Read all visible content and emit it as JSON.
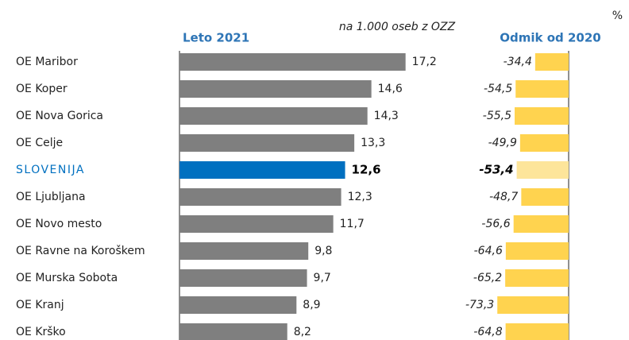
{
  "chart_data": [
    {
      "type": "hbar",
      "title": "Leto 2021",
      "subtitle": "na 1.000 oseb z OZZ",
      "categories": [
        "OE Maribor",
        "OE Koper",
        "OE Nova Gorica",
        "OE Celje",
        "SLOVENIJA",
        "OE Ljubljana",
        "OE Novo mesto",
        "OE Ravne na Koroškem",
        "OE Murska Sobota",
        "OE Kranj",
        "OE Krško"
      ],
      "values": [
        17.2,
        14.6,
        14.3,
        13.3,
        12.6,
        12.3,
        11.7,
        9.8,
        9.7,
        8.9,
        8.2
      ],
      "value_labels": [
        "17,2",
        "14,6",
        "14,3",
        "13,3",
        "12,6",
        "12,3",
        "11,7",
        "9,8",
        "9,7",
        "8,9",
        "8,2"
      ],
      "color": "#7f7f7f",
      "colors": [
        "#7f7f7f",
        "#7f7f7f",
        "#7f7f7f",
        "#7f7f7f",
        "#0070c0",
        "#7f7f7f",
        "#7f7f7f",
        "#7f7f7f",
        "#7f7f7f",
        "#7f7f7f",
        "#7f7f7f"
      ],
      "xlim": [
        0,
        20
      ]
    },
    {
      "type": "hbar",
      "title": "Odmik od 2020",
      "unit": "%",
      "values": [
        -34.4,
        -54.5,
        -55.5,
        -49.9,
        -53.4,
        -48.7,
        -56.6,
        -64.6,
        -65.2,
        -73.3,
        -64.8
      ],
      "value_labels": [
        "-34,4",
        "-54,5",
        "-55,5",
        "-49,9",
        "-53,4",
        "-48,7",
        "-56,6",
        "-64,6",
        "-65,2",
        "-73,3",
        "-64,8"
      ],
      "color": "#ffd34f",
      "colors": [
        "#ffd34f",
        "#ffd34f",
        "#ffd34f",
        "#ffd34f",
        "#fde59a",
        "#ffd34f",
        "#ffd34f",
        "#ffd34f",
        "#ffd34f",
        "#ffd34f",
        "#ffd34f"
      ],
      "xlim": [
        -80,
        0
      ]
    }
  ]
}
